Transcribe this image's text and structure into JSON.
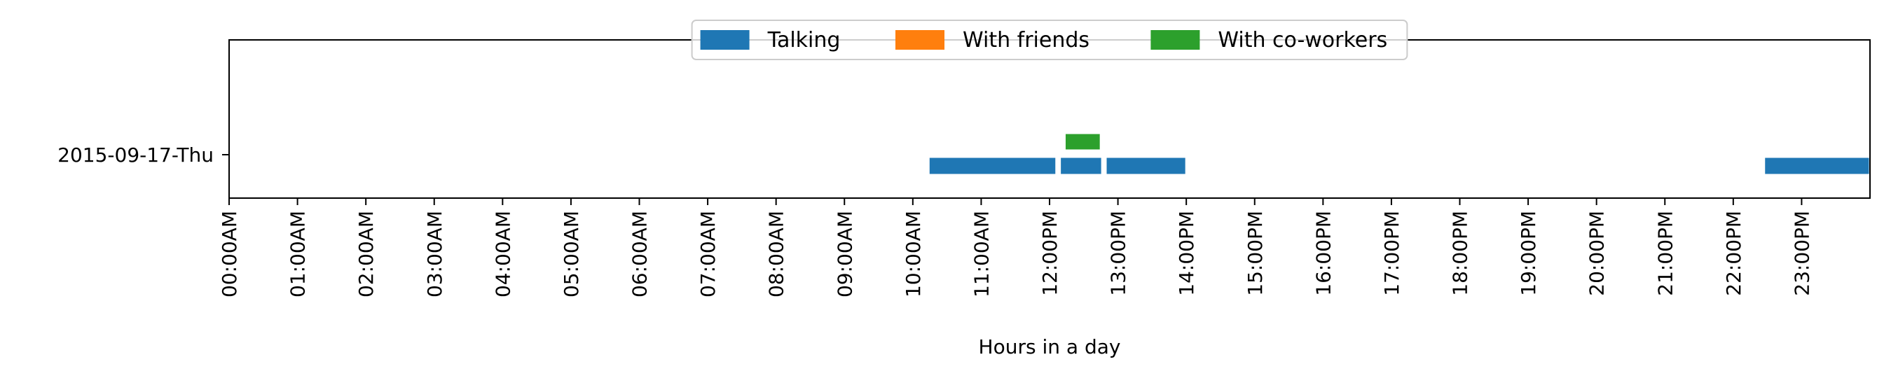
{
  "chart_data": {
    "type": "bar",
    "orientation": "horizontal",
    "xlabel": "Hours in a day",
    "ylabel": "",
    "title": "",
    "xlim": [
      0,
      24
    ],
    "x_ticks": [
      {
        "value": 0,
        "label": "00:00AM"
      },
      {
        "value": 1,
        "label": "01:00AM"
      },
      {
        "value": 2,
        "label": "02:00AM"
      },
      {
        "value": 3,
        "label": "03:00AM"
      },
      {
        "value": 4,
        "label": "04:00AM"
      },
      {
        "value": 5,
        "label": "05:00AM"
      },
      {
        "value": 6,
        "label": "06:00AM"
      },
      {
        "value": 7,
        "label": "07:00AM"
      },
      {
        "value": 8,
        "label": "08:00AM"
      },
      {
        "value": 9,
        "label": "09:00AM"
      },
      {
        "value": 10,
        "label": "10:00AM"
      },
      {
        "value": 11,
        "label": "11:00AM"
      },
      {
        "value": 12,
        "label": "12:00PM"
      },
      {
        "value": 13,
        "label": "13:00PM"
      },
      {
        "value": 14,
        "label": "14:00PM"
      },
      {
        "value": 15,
        "label": "15:00PM"
      },
      {
        "value": 16,
        "label": "16:00PM"
      },
      {
        "value": 17,
        "label": "17:00PM"
      },
      {
        "value": 18,
        "label": "18:00PM"
      },
      {
        "value": 19,
        "label": "19:00PM"
      },
      {
        "value": 20,
        "label": "20:00PM"
      },
      {
        "value": 21,
        "label": "21:00PM"
      },
      {
        "value": 22,
        "label": "22:00PM"
      },
      {
        "value": 23,
        "label": "23:00PM"
      }
    ],
    "categories": [
      "2015-09-17-Thu"
    ],
    "legend_position": "top-center",
    "series": [
      {
        "name": "Talking",
        "color": "#1f77b4",
        "lane": "lower",
        "segments": [
          {
            "category": "2015-09-17-Thu",
            "start": 10.23,
            "end": 12.1
          },
          {
            "category": "2015-09-17-Thu",
            "start": 12.15,
            "end": 12.77
          },
          {
            "category": "2015-09-17-Thu",
            "start": 12.82,
            "end": 14.0
          },
          {
            "category": "2015-09-17-Thu",
            "start": 22.45,
            "end": 24.0
          }
        ]
      },
      {
        "name": "With friends",
        "color": "#ff7f0e",
        "lane": "middle",
        "segments": []
      },
      {
        "name": "With co-workers",
        "color": "#2ca02c",
        "lane": "upper",
        "segments": [
          {
            "category": "2015-09-17-Thu",
            "start": 12.22,
            "end": 12.75
          }
        ]
      }
    ]
  }
}
